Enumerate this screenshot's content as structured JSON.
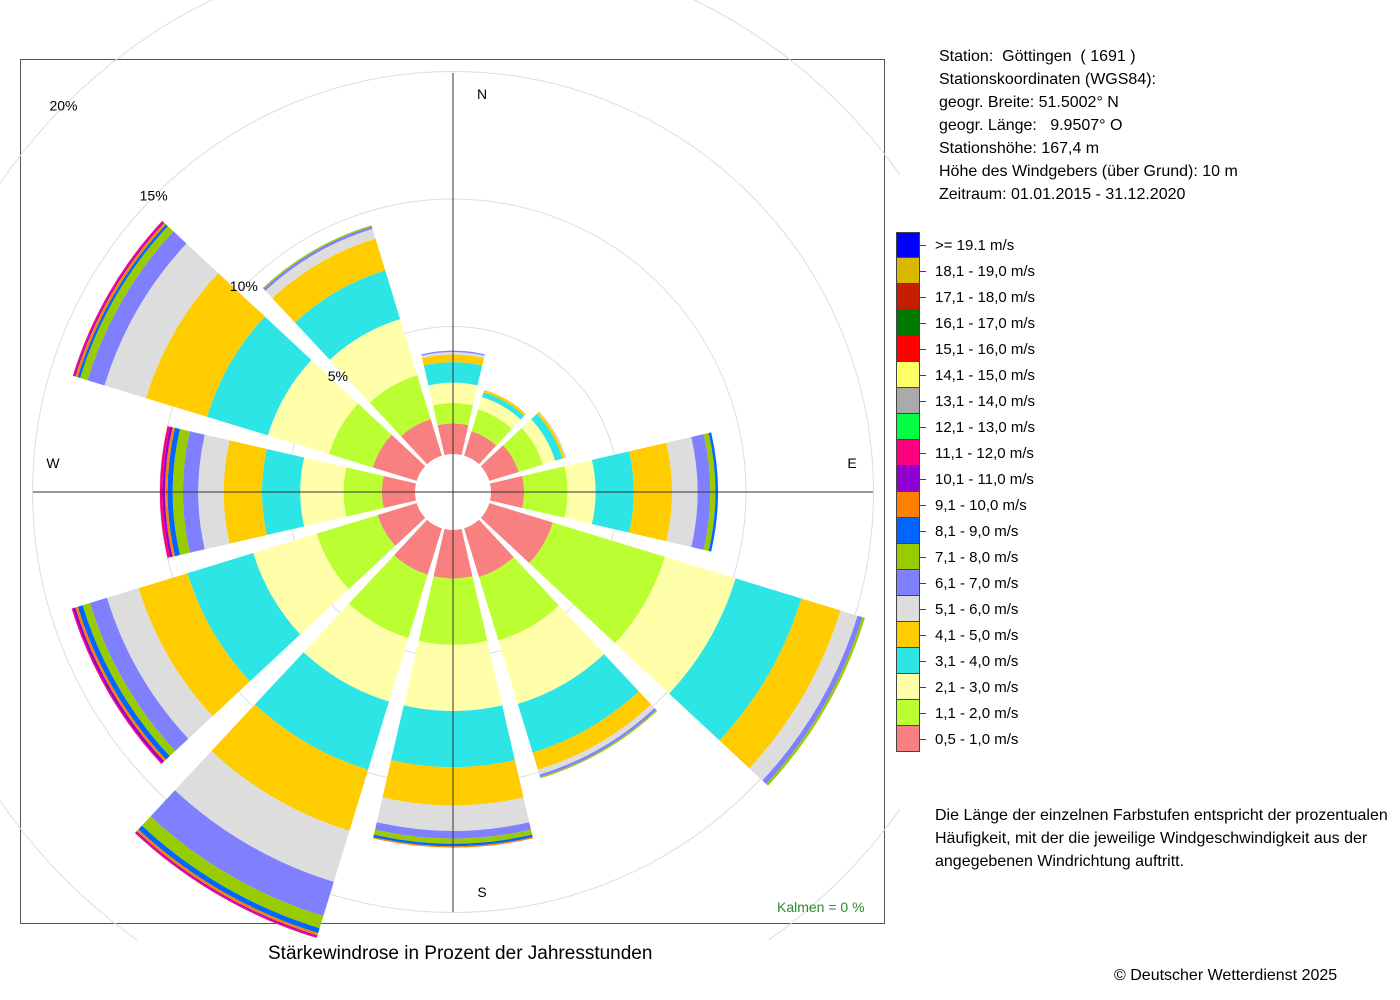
{
  "station": {
    "lines": [
      "Station:  Göttingen  ( 1691 )",
      "Stationskoordinaten (WGS84):",
      "geogr. Breite: 51.5002° N",
      "geogr. Länge:   9.9507° O",
      "Stationshöhe: 167,4 m",
      "Höhe des Windgebers (über Grund): 10 m",
      "Zeitraum: 01.01.2015 - 31.12.2020"
    ]
  },
  "legend": {
    "items": [
      {
        "label": ">= 19.1 m/s",
        "color": "#0000ff"
      },
      {
        "label": "18,1 - 19,0 m/s",
        "color": "#d9b800"
      },
      {
        "label": "17,1 - 18,0 m/s",
        "color": "#c41e00"
      },
      {
        "label": "16,1 - 17,0 m/s",
        "color": "#007a00"
      },
      {
        "label": "15,1 - 16,0 m/s",
        "color": "#ff0000"
      },
      {
        "label": "14,1 - 15,0 m/s",
        "color": "#ffff66"
      },
      {
        "label": "13,1 - 14,0 m/s",
        "color": "#aaaaaa"
      },
      {
        "label": "12,1 - 13,0 m/s",
        "color": "#00ff40"
      },
      {
        "label": "11,1 - 12,0 m/s",
        "color": "#ff0080"
      },
      {
        "label": "10,1 - 11,0 m/s",
        "color": "#9000d0"
      },
      {
        "label": "9,1 - 10,0 m/s",
        "color": "#ff8000"
      },
      {
        "label": "8,1 - 9,0 m/s",
        "color": "#0066ff"
      },
      {
        "label": "7,1 - 8,0 m/s",
        "color": "#99cc00"
      },
      {
        "label": "6,1 - 7,0 m/s",
        "color": "#8080ff"
      },
      {
        "label": "5,1 - 6,0 m/s",
        "color": "#dddddd"
      },
      {
        "label": "4,1 - 5,0 m/s",
        "color": "#ffcc00"
      },
      {
        "label": "3,1 - 4,0 m/s",
        "color": "#2ee5e5"
      },
      {
        "label": "2,1 - 3,0 m/s",
        "color": "#ffffaa"
      },
      {
        "label": "1,1 - 2,0 m/s",
        "color": "#bbff33"
      },
      {
        "label": "0,5 - 1,0 m/s",
        "color": "#f88080"
      }
    ]
  },
  "chart_data": {
    "type": "windrose",
    "title": "Stärkewindrose in Prozent der Jahresstunden",
    "calm_label": "Kalmen  =  0 %",
    "ring_labels": [
      "5%",
      "10%",
      "15%",
      "20%"
    ],
    "rings": [
      5,
      10,
      15,
      20
    ],
    "direction_labels": [
      "N",
      "E",
      "S",
      "W"
    ],
    "speed_classes": [
      "0,5 - 1,0 m/s",
      "1,1 - 2,0 m/s",
      "2,1 - 3,0 m/s",
      "3,1 - 4,0 m/s",
      "4,1 - 5,0 m/s",
      "5,1 - 6,0 m/s",
      "6,1 - 7,0 m/s",
      "7,1 - 8,0 m/s",
      "8,1 - 9,0 m/s",
      "9,1 - 10,0 m/s",
      "10,1 - 11,0 m/s",
      "11,1 - 12,0 m/s"
    ],
    "colors": [
      "#f88080",
      "#bbff33",
      "#ffffaa",
      "#2ee5e5",
      "#ffcc00",
      "#dddddd",
      "#8080ff",
      "#99cc00",
      "#0066ff",
      "#ff8000",
      "#9000d0",
      "#ff0080"
    ],
    "directions": [
      0,
      30,
      60,
      90,
      120,
      150,
      180,
      210,
      240,
      270,
      300,
      330
    ],
    "values": [
      [
        1.2,
        0.8,
        0.8,
        0.8,
        0.3,
        0.1,
        0.05,
        0,
        0,
        0,
        0,
        0
      ],
      [
        1.0,
        0.9,
        0.5,
        0.2,
        0.1,
        0,
        0,
        0,
        0,
        0,
        0,
        0
      ],
      [
        1.2,
        1.0,
        0.5,
        0.3,
        0.1,
        0.05,
        0,
        0,
        0,
        0,
        0,
        0
      ],
      [
        1.3,
        1.7,
        1.1,
        1.5,
        1.5,
        1.0,
        0.5,
        0.2,
        0.1,
        0,
        0,
        0
      ],
      [
        2.6,
        4.6,
        2.9,
        2.7,
        1.6,
        0.7,
        0.2,
        0.1,
        0,
        0,
        0,
        0
      ],
      [
        2.0,
        2.6,
        2.6,
        2.0,
        0.7,
        0.2,
        0.1,
        0.05,
        0,
        0,
        0,
        0
      ],
      [
        1.9,
        2.6,
        2.6,
        2.2,
        1.5,
        1.0,
        0.3,
        0.2,
        0.1,
        0.05,
        0,
        0
      ],
      [
        1.9,
        2.6,
        2.6,
        2.8,
        2.5,
        2.1,
        1.4,
        0.5,
        0.2,
        0.1,
        0.05,
        0.05
      ],
      [
        1.6,
        2.5,
        2.6,
        2.7,
        2.0,
        1.3,
        0.7,
        0.3,
        0.2,
        0.1,
        0.1,
        0.05
      ],
      [
        1.3,
        1.5,
        1.7,
        1.5,
        1.5,
        1.0,
        0.6,
        0.4,
        0.2,
        0.1,
        0.1,
        0.1
      ],
      [
        1.8,
        1.8,
        2.5,
        2.5,
        2.5,
        1.7,
        0.7,
        0.3,
        0.1,
        0.1,
        0.05,
        0.05
      ],
      [
        1.5,
        1.8,
        2.3,
        2.0,
        1.3,
        0.4,
        0.1,
        0.05,
        0,
        0,
        0,
        0
      ]
    ]
  },
  "note": "Die Länge der einzelnen Farbstufen entspricht der prozentualen Häufigkeit, mit der die jeweilige Windgeschwindigkeit aus der angegebenen Windrichtung auftritt.",
  "copyright": "© Deutscher Wetterdienst  2025"
}
